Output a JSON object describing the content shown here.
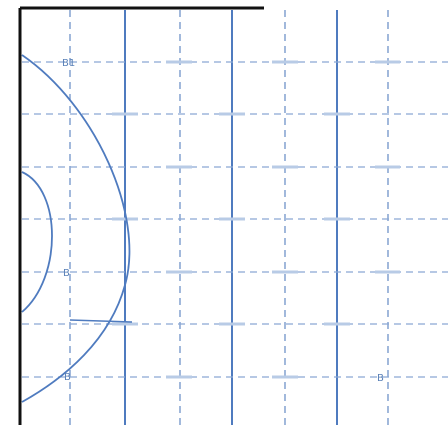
{
  "drawing": {
    "line_color": "#4f7bbf",
    "dash_color": "#6f93c8",
    "frame_color": "#111111",
    "labels": {
      "b1": "B1",
      "b2": "B",
      "b3": "B",
      "b4": "B"
    }
  }
}
